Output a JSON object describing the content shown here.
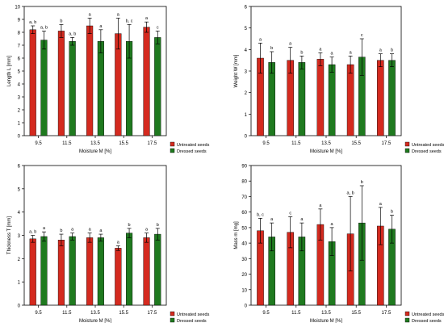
{
  "chart_data": [
    {
      "type": "bar",
      "id": "length",
      "categories": [
        "9.5",
        "11.5",
        "13.5",
        "15.5",
        "17.5"
      ],
      "xlabel": "Moisture M [%]",
      "ylabel": "Length L [mm]",
      "ylim": [
        0,
        10
      ],
      "yticks": [
        "0",
        "1",
        "2",
        "3",
        "4",
        "5",
        "6",
        "7",
        "8",
        "9",
        "10"
      ],
      "series": [
        {
          "name": "Untreated seeds",
          "color": "#d42a1f",
          "values": [
            8.2,
            8.1,
            8.5,
            7.9,
            8.4
          ],
          "errors": [
            0.3,
            0.5,
            0.6,
            1.2,
            0.4
          ],
          "letters": [
            "a, b",
            "b",
            "a",
            "a",
            "a"
          ]
        },
        {
          "name": "Dressed seeds",
          "color": "#1f7a1f",
          "values": [
            7.4,
            7.3,
            7.3,
            7.3,
            7.6
          ],
          "errors": [
            0.7,
            0.3,
            0.9,
            1.3,
            0.5
          ],
          "letters": [
            "a, b",
            "a, b",
            "a",
            "b, c",
            "c"
          ]
        }
      ]
    },
    {
      "type": "bar",
      "id": "weight",
      "categories": [
        "9.5",
        "11.5",
        "13.5",
        "15.5",
        "17.5"
      ],
      "xlabel": "Moisture M [%]",
      "ylabel": "Weight W [mm]",
      "ylim": [
        0,
        6
      ],
      "yticks": [
        "0",
        "1",
        "2",
        "3",
        "4",
        "5",
        "6"
      ],
      "series": [
        {
          "name": "Untreated seeds",
          "color": "#d42a1f",
          "values": [
            3.6,
            3.5,
            3.55,
            3.3,
            3.5
          ],
          "errors": [
            0.7,
            0.6,
            0.3,
            0.4,
            0.3
          ],
          "letters": [
            "a",
            "a",
            "a",
            "a",
            "a"
          ]
        },
        {
          "name": "Dressed seeds",
          "color": "#1f7a1f",
          "values": [
            3.4,
            3.4,
            3.3,
            3.65,
            3.5
          ],
          "errors": [
            0.5,
            0.3,
            0.35,
            0.85,
            0.3
          ],
          "letters": [
            "b",
            "b",
            "a",
            "c",
            "b"
          ]
        }
      ]
    },
    {
      "type": "bar",
      "id": "thickness",
      "categories": [
        "9.5",
        "11.5",
        "13.5",
        "15.5",
        "17.5"
      ],
      "xlabel": "Moisture M [%]",
      "ylabel": "Thickness T [mm]",
      "ylim": [
        0,
        6
      ],
      "yticks": [
        "0",
        "1",
        "2",
        "3",
        "4",
        "5",
        "6"
      ],
      "series": [
        {
          "name": "Untreated seeds",
          "color": "#d42a1f",
          "values": [
            2.85,
            2.8,
            2.9,
            2.45,
            2.9
          ],
          "errors": [
            0.15,
            0.25,
            0.2,
            0.1,
            0.2
          ],
          "letters": [
            "a, b",
            "b",
            "a",
            "a",
            "a"
          ]
        },
        {
          "name": "Dressed seeds",
          "color": "#1f7a1f",
          "values": [
            2.95,
            2.95,
            2.9,
            3.1,
            3.05
          ],
          "errors": [
            0.2,
            0.15,
            0.15,
            0.2,
            0.25
          ],
          "letters": [
            "a",
            "a",
            "a",
            "b",
            "b"
          ]
        }
      ]
    },
    {
      "type": "bar",
      "id": "mass",
      "categories": [
        "9.5",
        "11.5",
        "13.5",
        "15.5",
        "17.5"
      ],
      "xlabel": "Moisture M [%]",
      "ylabel": "Mass m [mg]",
      "ylim": [
        0,
        90
      ],
      "yticks": [
        "0",
        "10",
        "20",
        "30",
        "40",
        "50",
        "60",
        "70",
        "80",
        "90"
      ],
      "series": [
        {
          "name": "Untreated seeds",
          "color": "#d42a1f",
          "values": [
            48,
            47,
            52,
            46,
            51
          ],
          "errors": [
            8,
            10,
            10,
            24,
            12
          ],
          "letters": [
            "b, c",
            "c",
            "a",
            "a, b",
            "a"
          ]
        },
        {
          "name": "Dressed seeds",
          "color": "#1f7a1f",
          "values": [
            44,
            44,
            41,
            53,
            49
          ],
          "errors": [
            9,
            9,
            9,
            24,
            9
          ],
          "letters": [
            "a",
            "a",
            "a",
            "b",
            "b"
          ]
        }
      ]
    }
  ]
}
